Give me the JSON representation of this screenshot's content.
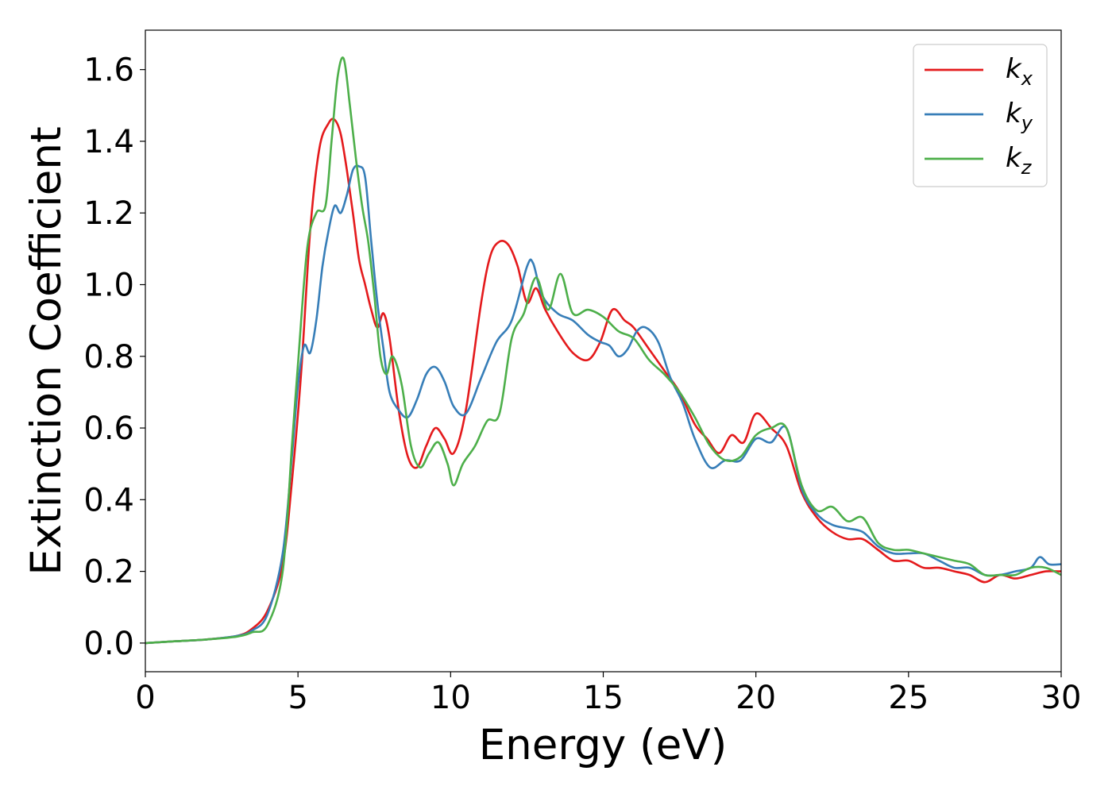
{
  "chart_data": {
    "type": "line",
    "xlabel": "Energy (eV)",
    "ylabel": "Extinction Coefficient",
    "xlim": [
      0,
      30
    ],
    "ylim": [
      -0.08,
      1.71
    ],
    "xticks": [
      0,
      5,
      10,
      15,
      20,
      25,
      30
    ],
    "xtick_labels": [
      "0",
      "5",
      "10",
      "15",
      "20",
      "25",
      "30"
    ],
    "yticks": [
      0.0,
      0.2,
      0.4,
      0.6,
      0.8,
      1.0,
      1.2,
      1.4,
      1.6
    ],
    "ytick_labels": [
      "0.0",
      "0.2",
      "0.4",
      "0.6",
      "0.8",
      "1.0",
      "1.2",
      "1.4",
      "1.6"
    ],
    "grid": false,
    "legend_position": "top-right",
    "series": [
      {
        "name": "k_x",
        "label_base": "k",
        "label_sub": "x",
        "color": "#e41a1c",
        "x": [
          0,
          1,
          2,
          3,
          3.5,
          4,
          4.5,
          4.8,
          5.1,
          5.4,
          5.7,
          6.0,
          6.2,
          6.4,
          6.6,
          6.8,
          7.0,
          7.2,
          7.4,
          7.6,
          7.8,
          8.0,
          8.3,
          8.6,
          8.9,
          9.2,
          9.5,
          9.8,
          10.1,
          10.5,
          11.0,
          11.3,
          11.6,
          11.9,
          12.2,
          12.5,
          12.8,
          13.1,
          13.5,
          14.0,
          14.5,
          14.9,
          15.3,
          15.7,
          16.0,
          16.5,
          17.0,
          17.5,
          18.0,
          18.4,
          18.8,
          19.2,
          19.6,
          20.0,
          20.5,
          21.0,
          21.5,
          22.0,
          22.5,
          23.0,
          23.5,
          24.0,
          24.5,
          25.0,
          25.5,
          26.0,
          26.5,
          27.0,
          27.5,
          28.0,
          28.5,
          29.0,
          29.5,
          30.0
        ],
        "y": [
          0.0,
          0.005,
          0.01,
          0.02,
          0.04,
          0.09,
          0.22,
          0.45,
          0.75,
          1.15,
          1.38,
          1.45,
          1.46,
          1.42,
          1.32,
          1.2,
          1.07,
          1.0,
          0.93,
          0.88,
          0.92,
          0.85,
          0.65,
          0.52,
          0.49,
          0.55,
          0.6,
          0.57,
          0.53,
          0.65,
          0.95,
          1.08,
          1.12,
          1.11,
          1.05,
          0.95,
          0.99,
          0.93,
          0.87,
          0.81,
          0.79,
          0.84,
          0.93,
          0.9,
          0.88,
          0.82,
          0.76,
          0.7,
          0.61,
          0.57,
          0.53,
          0.58,
          0.56,
          0.64,
          0.6,
          0.55,
          0.42,
          0.35,
          0.31,
          0.29,
          0.29,
          0.26,
          0.23,
          0.23,
          0.21,
          0.21,
          0.2,
          0.19,
          0.17,
          0.19,
          0.18,
          0.19,
          0.2,
          0.2
        ]
      },
      {
        "name": "k_y",
        "label_base": "k",
        "label_sub": "y",
        "color": "#377eb8",
        "x": [
          0,
          1,
          2,
          3,
          3.5,
          4,
          4.5,
          4.8,
          5.0,
          5.2,
          5.4,
          5.6,
          5.8,
          6.0,
          6.2,
          6.4,
          6.6,
          6.8,
          7.0,
          7.2,
          7.4,
          7.6,
          7.8,
          8.0,
          8.3,
          8.6,
          8.9,
          9.2,
          9.5,
          9.8,
          10.1,
          10.5,
          11.0,
          11.5,
          12.0,
          12.5,
          12.7,
          13.0,
          13.5,
          14.0,
          14.5,
          14.9,
          15.2,
          15.5,
          15.8,
          16.1,
          16.4,
          16.8,
          17.2,
          17.6,
          18.0,
          18.5,
          19.0,
          19.5,
          20.0,
          20.5,
          21.0,
          21.5,
          22.0,
          22.5,
          23.0,
          23.5,
          24.0,
          24.5,
          25.0,
          25.5,
          26.0,
          26.5,
          27.0,
          27.5,
          28.0,
          28.5,
          29.0,
          29.3,
          29.6,
          30.0
        ],
        "y": [
          0.0,
          0.005,
          0.01,
          0.02,
          0.035,
          0.08,
          0.25,
          0.52,
          0.72,
          0.83,
          0.81,
          0.9,
          1.05,
          1.15,
          1.22,
          1.2,
          1.25,
          1.32,
          1.33,
          1.3,
          1.12,
          0.95,
          0.82,
          0.7,
          0.65,
          0.63,
          0.68,
          0.75,
          0.77,
          0.73,
          0.66,
          0.64,
          0.74,
          0.84,
          0.9,
          1.05,
          1.06,
          0.97,
          0.92,
          0.9,
          0.86,
          0.84,
          0.83,
          0.8,
          0.82,
          0.87,
          0.88,
          0.84,
          0.74,
          0.67,
          0.57,
          0.49,
          0.51,
          0.51,
          0.57,
          0.56,
          0.6,
          0.43,
          0.36,
          0.33,
          0.32,
          0.31,
          0.27,
          0.25,
          0.25,
          0.25,
          0.23,
          0.21,
          0.21,
          0.19,
          0.19,
          0.2,
          0.21,
          0.24,
          0.22,
          0.22
        ]
      },
      {
        "name": "k_z",
        "label_base": "k",
        "label_sub": "z",
        "color": "#4daf4a",
        "x": [
          0,
          1,
          2,
          3,
          3.5,
          4,
          4.5,
          4.8,
          5.0,
          5.3,
          5.6,
          5.9,
          6.1,
          6.3,
          6.5,
          6.7,
          6.9,
          7.1,
          7.3,
          7.5,
          7.7,
          7.9,
          8.1,
          8.4,
          8.7,
          9.0,
          9.3,
          9.6,
          9.9,
          10.1,
          10.4,
          10.8,
          11.2,
          11.6,
          12.0,
          12.4,
          12.8,
          13.2,
          13.6,
          14.0,
          14.5,
          15.0,
          15.5,
          16.0,
          16.5,
          17.0,
          17.5,
          18.0,
          18.5,
          19.0,
          19.5,
          20.0,
          20.5,
          21.0,
          21.5,
          22.0,
          22.5,
          23.0,
          23.5,
          24.0,
          24.5,
          25.0,
          25.5,
          26.0,
          26.5,
          27.0,
          27.5,
          28.0,
          28.5,
          29.0,
          29.5,
          30.0
        ],
        "y": [
          0.0,
          0.005,
          0.01,
          0.018,
          0.03,
          0.05,
          0.2,
          0.55,
          0.78,
          1.1,
          1.2,
          1.22,
          1.4,
          1.58,
          1.63,
          1.5,
          1.35,
          1.22,
          1.12,
          0.97,
          0.8,
          0.75,
          0.8,
          0.72,
          0.55,
          0.49,
          0.53,
          0.56,
          0.5,
          0.44,
          0.5,
          0.55,
          0.62,
          0.64,
          0.85,
          0.92,
          1.02,
          0.93,
          1.03,
          0.92,
          0.93,
          0.91,
          0.87,
          0.85,
          0.79,
          0.75,
          0.7,
          0.63,
          0.55,
          0.51,
          0.52,
          0.58,
          0.6,
          0.6,
          0.44,
          0.37,
          0.38,
          0.34,
          0.35,
          0.28,
          0.26,
          0.26,
          0.25,
          0.24,
          0.23,
          0.22,
          0.19,
          0.19,
          0.19,
          0.21,
          0.21,
          0.19
        ]
      }
    ]
  }
}
